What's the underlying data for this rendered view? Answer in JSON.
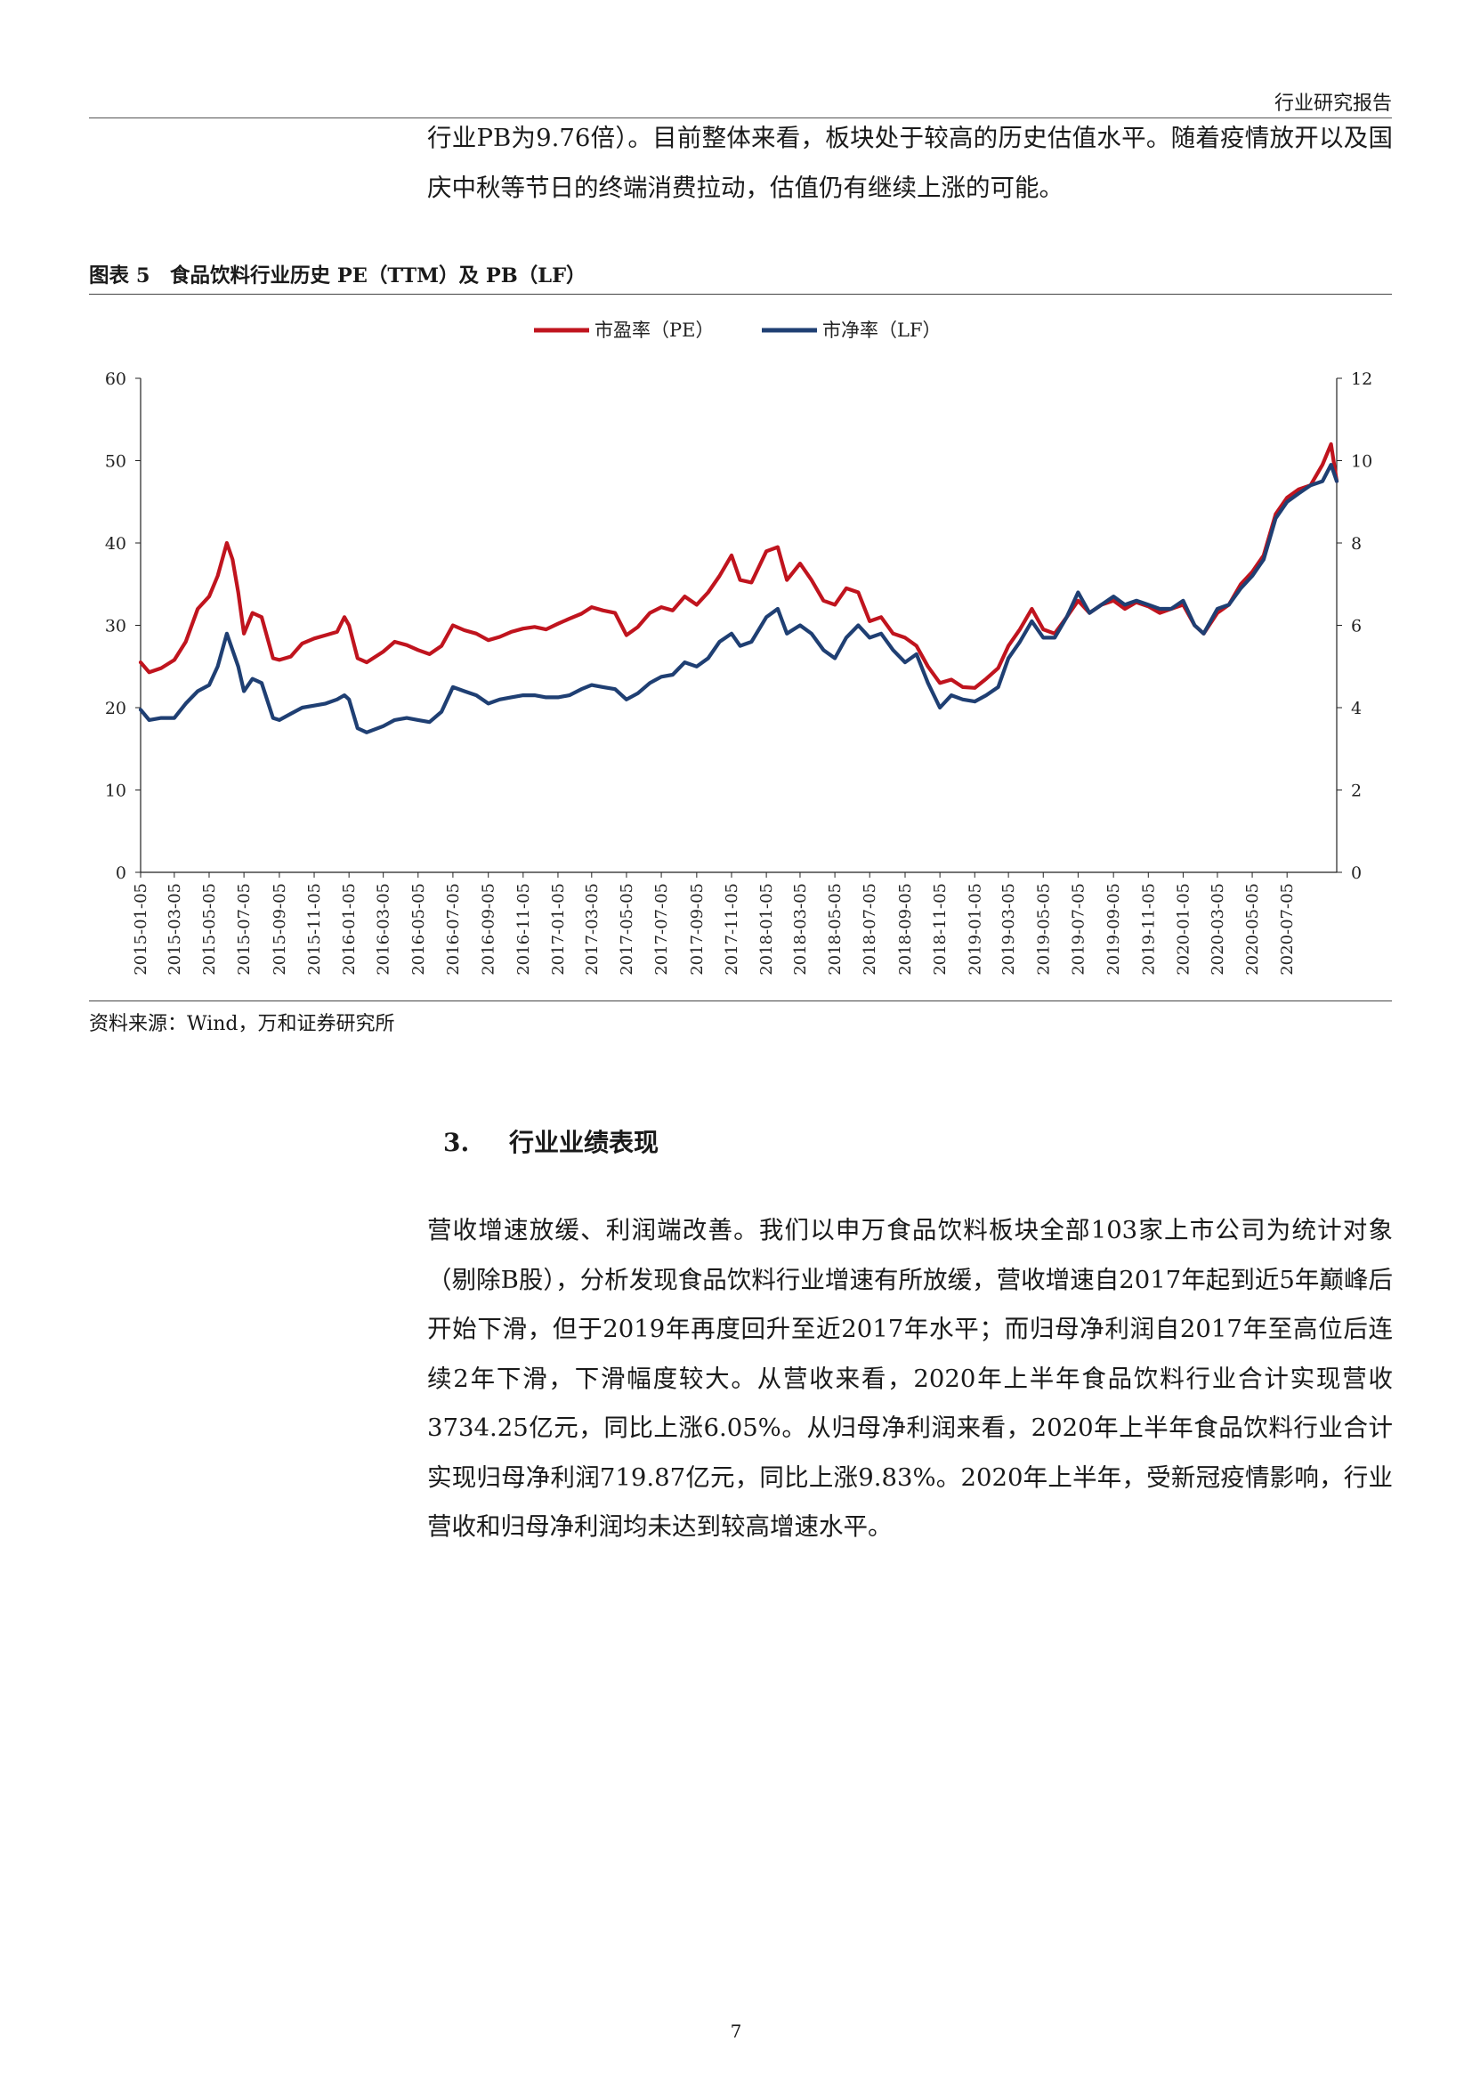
{
  "header": {
    "title": "行业研究报告"
  },
  "intro_paragraph": "行业PB为9.76倍）。目前整体来看，板块处于较高的历史估值水平。随着疫情放开以及国庆中秋等节日的终端消费拉动，估值仍有继续上涨的可能。",
  "figure": {
    "title": "图表 5　食品饮料行业历史 PE（TTM）及 PB（LF）",
    "source": "资料来源：Wind，万和证券研究所"
  },
  "chart_data": {
    "type": "line",
    "title": "",
    "xlabel": "",
    "ylabel": "",
    "y_left_lim": [
      0,
      60
    ],
    "y_left_ticks": [
      0,
      10,
      20,
      30,
      40,
      50,
      60
    ],
    "y_right_lim": [
      0,
      12
    ],
    "y_right_ticks": [
      0,
      2,
      4,
      6,
      8,
      10,
      12
    ],
    "x_range": [
      "2015-01-05",
      "2020-09-30"
    ],
    "x_tick_labels": [
      "2015-01-05",
      "2015-03-05",
      "2015-05-05",
      "2015-07-05",
      "2015-09-05",
      "2015-11-05",
      "2016-01-05",
      "2016-03-05",
      "2016-05-05",
      "2016-07-05",
      "2016-09-05",
      "2016-11-05",
      "2017-01-05",
      "2017-03-05",
      "2017-05-05",
      "2017-07-05",
      "2017-09-05",
      "2017-11-05",
      "2018-01-05",
      "2018-03-05",
      "2018-05-05",
      "2018-07-05",
      "2018-09-05",
      "2018-11-05",
      "2019-01-05",
      "2019-03-05",
      "2019-05-05",
      "2019-07-05",
      "2019-09-05",
      "2019-11-05",
      "2020-01-05",
      "2020-03-05",
      "2020-05-05",
      "2020-07-05"
    ],
    "legend_position": "top-center",
    "grid": false,
    "series": [
      {
        "name": "市盈率（PE）",
        "axis": "left",
        "color": "#c0141e",
        "points": [
          [
            "2015-01-05",
            25.5
          ],
          [
            "2015-01-20",
            24.3
          ],
          [
            "2015-02-10",
            24.8
          ],
          [
            "2015-03-05",
            25.8
          ],
          [
            "2015-03-25",
            28.0
          ],
          [
            "2015-04-15",
            32.0
          ],
          [
            "2015-05-05",
            33.5
          ],
          [
            "2015-05-20",
            36.0
          ],
          [
            "2015-06-05",
            40.0
          ],
          [
            "2015-06-15",
            38.0
          ],
          [
            "2015-06-25",
            34.0
          ],
          [
            "2015-07-05",
            29.0
          ],
          [
            "2015-07-20",
            31.5
          ],
          [
            "2015-08-05",
            31.0
          ],
          [
            "2015-08-25",
            26.0
          ],
          [
            "2015-09-05",
            25.8
          ],
          [
            "2015-09-25",
            26.2
          ],
          [
            "2015-10-15",
            27.8
          ],
          [
            "2015-11-05",
            28.4
          ],
          [
            "2015-11-25",
            28.8
          ],
          [
            "2015-12-15",
            29.2
          ],
          [
            "2015-12-28",
            31.0
          ],
          [
            "2016-01-05",
            30.0
          ],
          [
            "2016-01-20",
            26.0
          ],
          [
            "2016-02-05",
            25.5
          ],
          [
            "2016-03-05",
            26.8
          ],
          [
            "2016-03-25",
            28.0
          ],
          [
            "2016-04-15",
            27.6
          ],
          [
            "2016-05-05",
            27.0
          ],
          [
            "2016-05-25",
            26.5
          ],
          [
            "2016-06-15",
            27.5
          ],
          [
            "2016-07-05",
            30.0
          ],
          [
            "2016-07-25",
            29.4
          ],
          [
            "2016-08-15",
            29.0
          ],
          [
            "2016-09-05",
            28.2
          ],
          [
            "2016-09-25",
            28.6
          ],
          [
            "2016-10-15",
            29.2
          ],
          [
            "2016-11-05",
            29.6
          ],
          [
            "2016-11-25",
            29.8
          ],
          [
            "2016-12-15",
            29.5
          ],
          [
            "2017-01-05",
            30.2
          ],
          [
            "2017-01-25",
            30.8
          ],
          [
            "2017-02-15",
            31.4
          ],
          [
            "2017-03-05",
            32.2
          ],
          [
            "2017-03-25",
            31.8
          ],
          [
            "2017-04-15",
            31.5
          ],
          [
            "2017-05-05",
            28.8
          ],
          [
            "2017-05-25",
            29.8
          ],
          [
            "2017-06-15",
            31.5
          ],
          [
            "2017-07-05",
            32.2
          ],
          [
            "2017-07-25",
            31.8
          ],
          [
            "2017-08-15",
            33.5
          ],
          [
            "2017-09-05",
            32.5
          ],
          [
            "2017-09-25",
            34.0
          ],
          [
            "2017-10-15",
            36.0
          ],
          [
            "2017-11-05",
            38.5
          ],
          [
            "2017-11-20",
            35.5
          ],
          [
            "2017-12-10",
            35.2
          ],
          [
            "2018-01-05",
            39.0
          ],
          [
            "2018-01-25",
            39.5
          ],
          [
            "2018-02-10",
            35.5
          ],
          [
            "2018-03-05",
            37.5
          ],
          [
            "2018-03-25",
            35.5
          ],
          [
            "2018-04-15",
            33.0
          ],
          [
            "2018-05-05",
            32.5
          ],
          [
            "2018-05-25",
            34.5
          ],
          [
            "2018-06-15",
            34.0
          ],
          [
            "2018-07-05",
            30.5
          ],
          [
            "2018-07-25",
            31.0
          ],
          [
            "2018-08-15",
            29.0
          ],
          [
            "2018-09-05",
            28.5
          ],
          [
            "2018-09-25",
            27.5
          ],
          [
            "2018-10-15",
            25.0
          ],
          [
            "2018-11-05",
            23.0
          ],
          [
            "2018-11-25",
            23.4
          ],
          [
            "2018-12-15",
            22.5
          ],
          [
            "2019-01-05",
            22.4
          ],
          [
            "2019-01-25",
            23.5
          ],
          [
            "2019-02-15",
            24.8
          ],
          [
            "2019-03-05",
            27.5
          ],
          [
            "2019-03-25",
            29.5
          ],
          [
            "2019-04-15",
            32.0
          ],
          [
            "2019-05-05",
            29.5
          ],
          [
            "2019-05-25",
            29.0
          ],
          [
            "2019-06-15",
            31.0
          ],
          [
            "2019-07-05",
            33.0
          ],
          [
            "2019-07-25",
            31.5
          ],
          [
            "2019-08-15",
            32.5
          ],
          [
            "2019-09-05",
            33.0
          ],
          [
            "2019-09-25",
            32.0
          ],
          [
            "2019-10-15",
            32.8
          ],
          [
            "2019-11-05",
            32.3
          ],
          [
            "2019-11-25",
            31.5
          ],
          [
            "2019-12-15",
            32.0
          ],
          [
            "2020-01-05",
            32.5
          ],
          [
            "2020-01-25",
            30.0
          ],
          [
            "2020-02-10",
            29.0
          ],
          [
            "2020-03-05",
            31.5
          ],
          [
            "2020-03-25",
            32.5
          ],
          [
            "2020-04-15",
            35.0
          ],
          [
            "2020-05-05",
            36.5
          ],
          [
            "2020-05-25",
            38.5
          ],
          [
            "2020-06-15",
            43.5
          ],
          [
            "2020-07-05",
            45.5
          ],
          [
            "2020-07-25",
            46.5
          ],
          [
            "2020-08-15",
            47.0
          ],
          [
            "2020-09-05",
            49.5
          ],
          [
            "2020-09-20",
            52.0
          ],
          [
            "2020-09-30",
            47.5
          ]
        ]
      },
      {
        "name": "市净率（LF）",
        "axis": "right",
        "color": "#1f3f73",
        "points": [
          [
            "2015-01-05",
            3.95
          ],
          [
            "2015-01-20",
            3.7
          ],
          [
            "2015-02-10",
            3.75
          ],
          [
            "2015-03-05",
            3.75
          ],
          [
            "2015-03-25",
            4.1
          ],
          [
            "2015-04-15",
            4.4
          ],
          [
            "2015-05-05",
            4.55
          ],
          [
            "2015-05-20",
            5.0
          ],
          [
            "2015-06-05",
            5.8
          ],
          [
            "2015-06-15",
            5.4
          ],
          [
            "2015-06-25",
            5.0
          ],
          [
            "2015-07-05",
            4.4
          ],
          [
            "2015-07-20",
            4.7
          ],
          [
            "2015-08-05",
            4.6
          ],
          [
            "2015-08-25",
            3.75
          ],
          [
            "2015-09-05",
            3.7
          ],
          [
            "2015-09-25",
            3.85
          ],
          [
            "2015-10-15",
            4.0
          ],
          [
            "2015-11-05",
            4.05
          ],
          [
            "2015-11-25",
            4.1
          ],
          [
            "2015-12-15",
            4.2
          ],
          [
            "2015-12-28",
            4.3
          ],
          [
            "2016-01-05",
            4.2
          ],
          [
            "2016-01-20",
            3.5
          ],
          [
            "2016-02-05",
            3.4
          ],
          [
            "2016-03-05",
            3.55
          ],
          [
            "2016-03-25",
            3.7
          ],
          [
            "2016-04-15",
            3.75
          ],
          [
            "2016-05-05",
            3.7
          ],
          [
            "2016-05-25",
            3.65
          ],
          [
            "2016-06-15",
            3.9
          ],
          [
            "2016-07-05",
            4.5
          ],
          [
            "2016-07-25",
            4.4
          ],
          [
            "2016-08-15",
            4.3
          ],
          [
            "2016-09-05",
            4.1
          ],
          [
            "2016-09-25",
            4.2
          ],
          [
            "2016-10-15",
            4.25
          ],
          [
            "2016-11-05",
            4.3
          ],
          [
            "2016-11-25",
            4.3
          ],
          [
            "2016-12-15",
            4.25
          ],
          [
            "2017-01-05",
            4.25
          ],
          [
            "2017-01-25",
            4.3
          ],
          [
            "2017-02-15",
            4.45
          ],
          [
            "2017-03-05",
            4.55
          ],
          [
            "2017-03-25",
            4.5
          ],
          [
            "2017-04-15",
            4.45
          ],
          [
            "2017-05-05",
            4.2
          ],
          [
            "2017-05-25",
            4.35
          ],
          [
            "2017-06-15",
            4.6
          ],
          [
            "2017-07-05",
            4.75
          ],
          [
            "2017-07-25",
            4.8
          ],
          [
            "2017-08-15",
            5.1
          ],
          [
            "2017-09-05",
            5.0
          ],
          [
            "2017-09-25",
            5.2
          ],
          [
            "2017-10-15",
            5.6
          ],
          [
            "2017-11-05",
            5.8
          ],
          [
            "2017-11-20",
            5.5
          ],
          [
            "2017-12-10",
            5.6
          ],
          [
            "2018-01-05",
            6.2
          ],
          [
            "2018-01-25",
            6.4
          ],
          [
            "2018-02-10",
            5.8
          ],
          [
            "2018-03-05",
            6.0
          ],
          [
            "2018-03-25",
            5.8
          ],
          [
            "2018-04-15",
            5.4
          ],
          [
            "2018-05-05",
            5.2
          ],
          [
            "2018-05-25",
            5.7
          ],
          [
            "2018-06-15",
            6.0
          ],
          [
            "2018-07-05",
            5.7
          ],
          [
            "2018-07-25",
            5.8
          ],
          [
            "2018-08-15",
            5.4
          ],
          [
            "2018-09-05",
            5.1
          ],
          [
            "2018-09-25",
            5.3
          ],
          [
            "2018-10-15",
            4.6
          ],
          [
            "2018-11-05",
            4.0
          ],
          [
            "2018-11-25",
            4.3
          ],
          [
            "2018-12-15",
            4.2
          ],
          [
            "2019-01-05",
            4.15
          ],
          [
            "2019-01-25",
            4.3
          ],
          [
            "2019-02-15",
            4.5
          ],
          [
            "2019-03-05",
            5.2
          ],
          [
            "2019-03-25",
            5.6
          ],
          [
            "2019-04-15",
            6.1
          ],
          [
            "2019-05-05",
            5.7
          ],
          [
            "2019-05-25",
            5.7
          ],
          [
            "2019-06-15",
            6.2
          ],
          [
            "2019-07-05",
            6.8
          ],
          [
            "2019-07-25",
            6.3
          ],
          [
            "2019-08-15",
            6.5
          ],
          [
            "2019-09-05",
            6.7
          ],
          [
            "2019-09-25",
            6.5
          ],
          [
            "2019-10-15",
            6.6
          ],
          [
            "2019-11-05",
            6.5
          ],
          [
            "2019-11-25",
            6.4
          ],
          [
            "2019-12-15",
            6.4
          ],
          [
            "2020-01-05",
            6.6
          ],
          [
            "2020-01-25",
            6.0
          ],
          [
            "2020-02-10",
            5.8
          ],
          [
            "2020-03-05",
            6.4
          ],
          [
            "2020-03-25",
            6.5
          ],
          [
            "2020-04-15",
            6.9
          ],
          [
            "2020-05-05",
            7.2
          ],
          [
            "2020-05-25",
            7.6
          ],
          [
            "2020-06-15",
            8.6
          ],
          [
            "2020-07-05",
            9.0
          ],
          [
            "2020-07-25",
            9.2
          ],
          [
            "2020-08-15",
            9.4
          ],
          [
            "2020-09-05",
            9.5
          ],
          [
            "2020-09-20",
            9.9
          ],
          [
            "2020-09-30",
            9.5
          ]
        ]
      }
    ]
  },
  "section": {
    "number": "3.",
    "title": "行业业绩表现"
  },
  "body_paragraph": "营收增速放缓、利润端改善。我们以申万食品饮料板块全部103家上市公司为统计对象（剔除B股），分析发现食品饮料行业增速有所放缓，营收增速自2017年起到近5年巅峰后开始下滑，但于2019年再度回升至近2017年水平；而归母净利润自2017年至高位后连续2年下滑，下滑幅度较大。从营收来看，2020年上半年食品饮料行业合计实现营收3734.25亿元，同比上涨6.05%。从归母净利润来看，2020年上半年食品饮料行业合计实现归母净利润719.87亿元，同比上涨9.83%。2020年上半年，受新冠疫情影响，行业营收和归母净利润均未达到较高增速水平。",
  "page_number": "7"
}
